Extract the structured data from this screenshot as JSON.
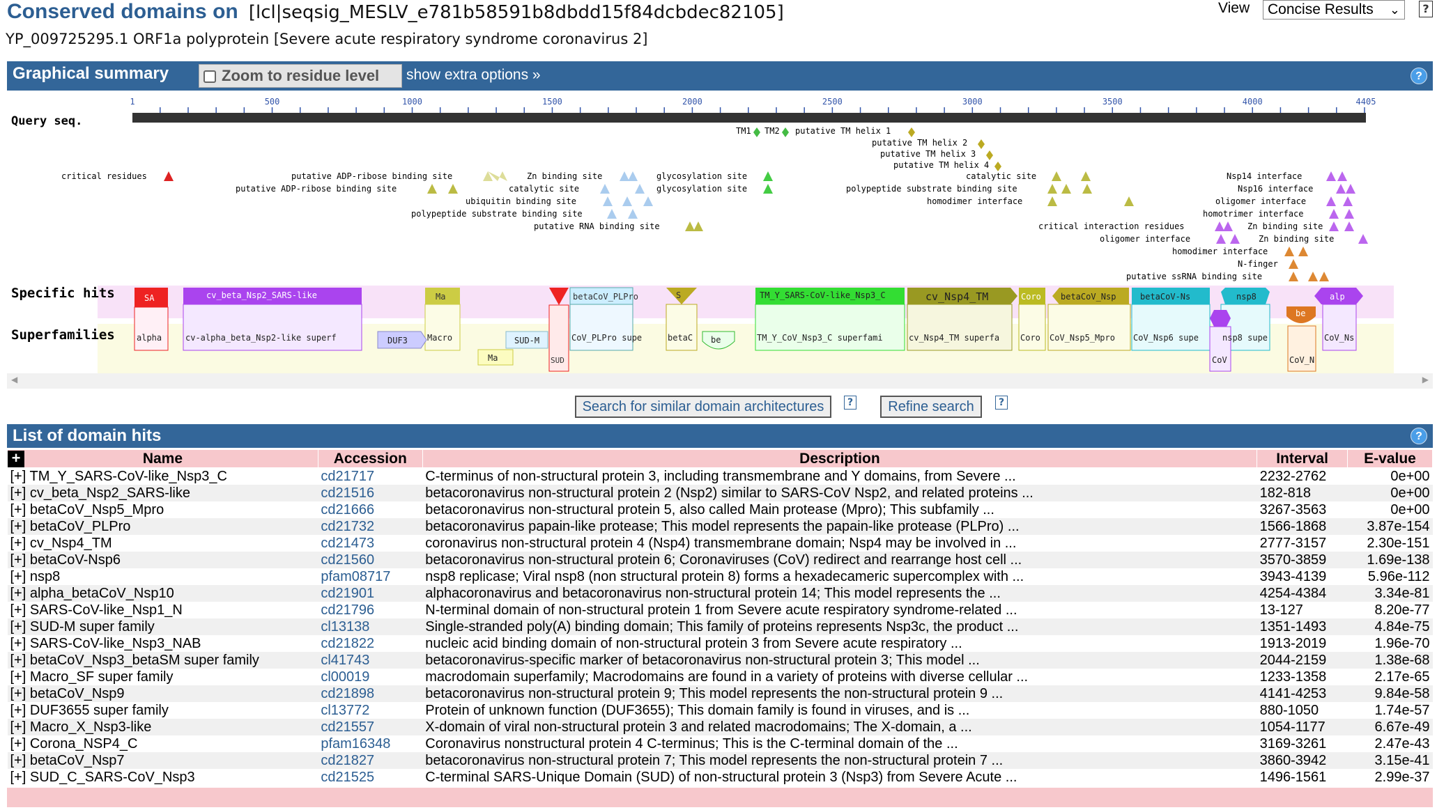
{
  "header": {
    "title": "Conserved domains on",
    "query_id": "[lcl|seqsig_MESLV_e781b58591b8dbdd15f84dcbdec82105]",
    "subtitle": "YP_009725295.1 ORF1a polyprotein [Severe acute respiratory syndrome coronavirus 2]",
    "view_label": "View",
    "view_selected": "Concise Results",
    "help": "?"
  },
  "graphical_summary": {
    "title": "Graphical summary",
    "zoom_label": "Zoom to residue level",
    "zoom_checked": false,
    "extra_options": "show extra options »",
    "help": "?",
    "ruler": {
      "length": 4405,
      "ticks": [
        "1",
        "500",
        "1000",
        "1500",
        "2000",
        "2500",
        "3000",
        "3500",
        "4000",
        "4405"
      ]
    },
    "row_labels": {
      "query": "Query seq.",
      "specific": "Specific hits",
      "superfamilies": "Superfamilies"
    },
    "features": [
      {
        "label": "TM1",
        "color": "#44bb44"
      },
      {
        "label": "TM2",
        "color": "#44bb44"
      },
      {
        "label": "putative TM helix 1",
        "color": "#bbaa22"
      },
      {
        "label": "putative TM helix 2",
        "color": "#bbaa22"
      },
      {
        "label": "putative TM helix 3",
        "color": "#bbaa22"
      },
      {
        "label": "putative TM helix 4",
        "color": "#bbaa22"
      },
      {
        "label": "critical residues",
        "color": "#dd2222"
      },
      {
        "label": "putative ADP-ribose binding site",
        "color": "#dddd99"
      },
      {
        "label": "putative ADP-ribose binding site",
        "color": "#bbbb44"
      },
      {
        "label": "Zn binding site",
        "color": "#aaccee"
      },
      {
        "label": "catalytic site",
        "color": "#aaccee"
      },
      {
        "label": "ubiquitin binding site",
        "color": "#aaccee"
      },
      {
        "label": "polypeptide substrate binding site",
        "color": "#aaccee"
      },
      {
        "label": "putative RNA binding site",
        "color": "#bbbb44"
      },
      {
        "label": "glycosylation site",
        "color": "#44cc44"
      },
      {
        "label": "glycosylation site",
        "color": "#44cc44"
      },
      {
        "label": "catalytic site",
        "color": "#bbbb44"
      },
      {
        "label": "polypeptide substrate binding site",
        "color": "#bbbb44"
      },
      {
        "label": "homodimer interface",
        "color": "#bbbb44"
      },
      {
        "label": "critical interaction residues",
        "color": "#bb66ee"
      },
      {
        "label": "oligomer interface",
        "color": "#bb66ee"
      },
      {
        "label": "Nsp14 interface",
        "color": "#bb66ee"
      },
      {
        "label": "Nsp16 interface",
        "color": "#bb66ee"
      },
      {
        "label": "oligomer interface",
        "color": "#bb66ee"
      },
      {
        "label": "homotrimer interface",
        "color": "#bb66ee"
      },
      {
        "label": "Zn binding site",
        "color": "#bb66ee"
      },
      {
        "label": "Zn binding site",
        "color": "#bb66ee"
      },
      {
        "label": "homodimer interface",
        "color": "#dd8833"
      },
      {
        "label": "N-finger",
        "color": "#dd8833"
      },
      {
        "label": "putative ssRNA binding site",
        "color": "#dd8833"
      }
    ],
    "specific_hits": [
      {
        "label": "SA",
        "color": "#ee2222"
      },
      {
        "label": "cv_beta_Nsp2_SARS-like",
        "color": "#aa44ee"
      },
      {
        "label": "Ma",
        "color": "#cccc44"
      },
      {
        "label": "",
        "color": "#ee2222"
      },
      {
        "label": "betaCoV_PLPro",
        "color": "#cceeff"
      },
      {
        "label": "S",
        "color": "#bbaa22"
      },
      {
        "label": "TM_Y_SARS-CoV-like_Nsp3_C",
        "color": "#33dd33"
      },
      {
        "label": "cv_Nsp4_TM",
        "color": "#999922"
      },
      {
        "label": "Coro",
        "color": "#bbbb22"
      },
      {
        "label": "betaCoV_Nsp",
        "color": "#bbaa22"
      },
      {
        "label": "betaCoV-Ns",
        "color": "#22bbcc"
      },
      {
        "label": "nsp8",
        "color": "#22bbcc"
      },
      {
        "label": "alp",
        "color": "#aa44ee"
      }
    ],
    "superfamilies": [
      {
        "label": "alpha"
      },
      {
        "label": "cv-alpha_beta_Nsp2-like superf"
      },
      {
        "label": "DUF3"
      },
      {
        "label": "Macro"
      },
      {
        "label": "Ma"
      },
      {
        "label": "SUD-M"
      },
      {
        "label": "SUD"
      },
      {
        "label": "CoV_PLPro supe"
      },
      {
        "label": "betaC"
      },
      {
        "label": "be"
      },
      {
        "label": "TM_Y_CoV_Nsp3_C superfami"
      },
      {
        "label": "cv_Nsp4_TM superfa"
      },
      {
        "label": "Coro"
      },
      {
        "label": "CoV_Nsp5_Mpro"
      },
      {
        "label": "CoV_Nsp6 supe"
      },
      {
        "label": "CoV"
      },
      {
        "label": "nsp8 supe"
      },
      {
        "label": "be"
      },
      {
        "label": "CoV_N"
      },
      {
        "label": "CoV_Ns"
      }
    ]
  },
  "actions": {
    "search_similar": "Search for similar domain architectures",
    "refine": "Refine search",
    "help": "?"
  },
  "domain_hits": {
    "title": "List of domain hits",
    "help": "?",
    "columns": [
      "Name",
      "Accession",
      "Description",
      "Interval",
      "E-value"
    ],
    "rows": [
      {
        "name": "TM_Y_SARS-CoV-like_Nsp3_C",
        "accession": "cd21717",
        "description": "C-terminus of non-structural protein 3, including transmembrane and Y domains, from Severe ...",
        "interval": "2232-2762",
        "evalue": "0e+00"
      },
      {
        "name": "cv_beta_Nsp2_SARS-like",
        "accession": "cd21516",
        "description": "betacoronavirus non-structural protein 2 (Nsp2) similar to SARS-CoV Nsp2, and related proteins ...",
        "interval": "182-818",
        "evalue": "0e+00"
      },
      {
        "name": "betaCoV_Nsp5_Mpro",
        "accession": "cd21666",
        "description": "betacoronavirus non-structural protein 5, also called Main protease (Mpro); This subfamily ...",
        "interval": "3267-3563",
        "evalue": "0e+00"
      },
      {
        "name": "betaCoV_PLPro",
        "accession": "cd21732",
        "description": "betacoronavirus papain-like protease; This model represents the papain-like protease (PLPro) ...",
        "interval": "1566-1868",
        "evalue": "3.87e-154"
      },
      {
        "name": "cv_Nsp4_TM",
        "accession": "cd21473",
        "description": "coronavirus non-structural protein 4 (Nsp4) transmembrane domain; Nsp4 may be involved in ...",
        "interval": "2777-3157",
        "evalue": "2.30e-151"
      },
      {
        "name": "betaCoV-Nsp6",
        "accession": "cd21560",
        "description": "betacoronavirus non-structural protein 6; Coronaviruses (CoV) redirect and rearrange host cell ...",
        "interval": "3570-3859",
        "evalue": "1.69e-138"
      },
      {
        "name": "nsp8",
        "accession": "pfam08717",
        "description": "nsp8 replicase; Viral nsp8 (non structural protein 8) forms a hexadecameric supercomplex with ...",
        "interval": "3943-4139",
        "evalue": "5.96e-112"
      },
      {
        "name": "alpha_betaCoV_Nsp10",
        "accession": "cd21901",
        "description": "alphacoronavirus and betacoronavirus non-structural protein 14; This model represents the ...",
        "interval": "4254-4384",
        "evalue": "3.34e-81"
      },
      {
        "name": "SARS-CoV-like_Nsp1_N",
        "accession": "cd21796",
        "description": "N-terminal domain of non-structural protein 1 from Severe acute respiratory syndrome-related ...",
        "interval": "13-127",
        "evalue": "8.20e-77"
      },
      {
        "name": "SUD-M super family",
        "accession": "cl13138",
        "description": "Single-stranded poly(A) binding domain; This family of proteins represents Nsp3c, the product ...",
        "interval": "1351-1493",
        "evalue": "4.84e-75"
      },
      {
        "name": "SARS-CoV-like_Nsp3_NAB",
        "accession": "cd21822",
        "description": "nucleic acid binding domain of non-structural protein 3 from Severe acute respiratory ...",
        "interval": "1913-2019",
        "evalue": "1.96e-70"
      },
      {
        "name": "betaCoV_Nsp3_betaSM super family",
        "accession": "cl41743",
        "description": "betacoronavirus-specific marker of betacoronavirus non-structural protein 3; This model ...",
        "interval": "2044-2159",
        "evalue": "1.38e-68"
      },
      {
        "name": "Macro_SF super family",
        "accession": "cl00019",
        "description": "macrodomain superfamily; Macrodomains are found in a variety of proteins with diverse cellular ...",
        "interval": "1233-1358",
        "evalue": "2.17e-65"
      },
      {
        "name": "betaCoV_Nsp9",
        "accession": "cd21898",
        "description": "betacoronavirus non-structural protein 9; This model represents the non-structural protein 9 ...",
        "interval": "4141-4253",
        "evalue": "9.84e-58"
      },
      {
        "name": "DUF3655 super family",
        "accession": "cl13772",
        "description": "Protein of unknown function (DUF3655); This domain family is found in viruses, and is ...",
        "interval": "880-1050",
        "evalue": "1.74e-57"
      },
      {
        "name": "Macro_X_Nsp3-like",
        "accession": "cd21557",
        "description": "X-domain of viral non-structural protein 3 and related macrodomains; The X-domain, a ...",
        "interval": "1054-1177",
        "evalue": "6.67e-49"
      },
      {
        "name": "Corona_NSP4_C",
        "accession": "pfam16348",
        "description": "Coronavirus nonstructural protein 4 C-terminus; This is the C-terminal domain of the ...",
        "interval": "3169-3261",
        "evalue": "2.47e-43"
      },
      {
        "name": "betaCoV_Nsp7",
        "accession": "cd21827",
        "description": "betacoronavirus non-structural protein 7; This model represents the non-structural protein 7 ...",
        "interval": "3860-3942",
        "evalue": "3.15e-41"
      },
      {
        "name": "SUD_C_SARS-CoV_Nsp3",
        "accession": "cd21525",
        "description": "C-terminal SARS-Unique Domain (SUD) of non-structural protein 3 (Nsp3) from Severe Acute ...",
        "interval": "1496-1561",
        "evalue": "2.99e-37"
      }
    ]
  }
}
